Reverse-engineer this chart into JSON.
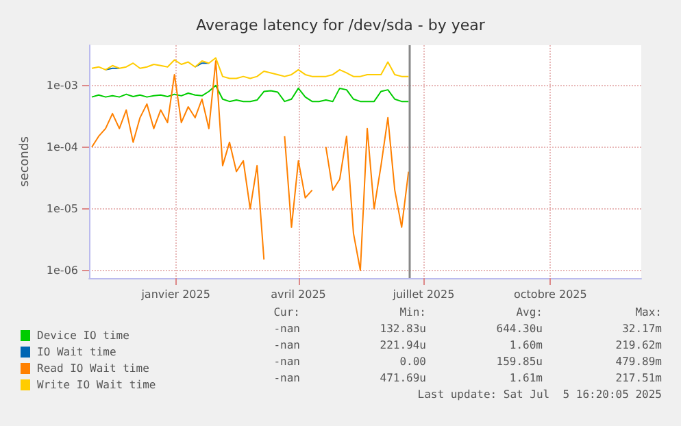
{
  "chart_data": {
    "type": "line",
    "title": "Average latency for /dev/sda - by year",
    "ylabel": "seconds",
    "x": [
      "2024-11-16",
      "2024-11-21",
      "2024-11-26",
      "2024-12-01",
      "2024-12-06",
      "2024-12-11",
      "2024-12-16",
      "2024-12-21",
      "2024-12-26",
      "2024-12-31",
      "2025-01-05",
      "2025-01-10",
      "2025-01-15",
      "2025-01-20",
      "2025-01-25",
      "2025-01-30",
      "2025-02-04",
      "2025-02-09",
      "2025-02-14",
      "2025-02-19",
      "2025-02-24",
      "2025-03-01",
      "2025-03-06",
      "2025-03-11",
      "2025-03-16",
      "2025-03-21",
      "2025-03-26",
      "2025-03-31",
      "2025-04-05",
      "2025-04-10",
      "2025-04-15",
      "2025-04-20",
      "2025-04-25",
      "2025-04-30",
      "2025-05-05",
      "2025-05-10",
      "2025-05-15",
      "2025-05-20",
      "2025-05-25",
      "2025-05-30",
      "2025-06-04",
      "2025-06-09",
      "2025-06-14",
      "2025-06-19",
      "2025-06-24",
      "2025-06-29",
      "2025-07-04"
    ],
    "series": [
      {
        "name": "Device IO time",
        "color": "#00cc00",
        "values": [
          0.00065,
          0.0007,
          0.00065,
          0.00068,
          0.00065,
          0.00072,
          0.00066,
          0.0007,
          0.00065,
          0.00068,
          0.0007,
          0.00066,
          0.00072,
          0.00068,
          0.00075,
          0.0007,
          0.00068,
          0.0008,
          0.001,
          0.0006,
          0.00055,
          0.00058,
          0.00055,
          0.00055,
          0.00058,
          0.0008,
          0.00082,
          0.00078,
          0.00055,
          0.0006,
          0.0009,
          0.00065,
          0.00055,
          0.00055,
          0.00058,
          0.00055,
          0.0009,
          0.00085,
          0.0006,
          0.00055,
          0.00055,
          0.00055,
          0.0008,
          0.00085,
          0.0006,
          0.00055,
          0.00055
        ]
      },
      {
        "name": "IO Wait time",
        "color": "#0066b3",
        "values": [
          null,
          null,
          0.0018,
          0.0019,
          0.0019,
          null,
          null,
          null,
          null,
          null,
          null,
          null,
          null,
          null,
          null,
          0.002,
          0.0023,
          0.0023,
          null,
          null,
          null,
          null,
          null,
          null,
          null,
          null,
          null,
          null,
          null,
          null,
          null,
          null,
          null,
          null,
          null,
          null,
          null,
          null,
          null,
          null,
          null,
          null,
          null,
          null,
          null,
          null,
          null
        ]
      },
      {
        "name": "Read IO Wait time",
        "color": "#ff8000",
        "values": [
          0.0001,
          0.00015,
          0.0002,
          0.00035,
          0.0002,
          0.0004,
          0.00012,
          0.0003,
          0.0005,
          0.0002,
          0.0004,
          0.00025,
          0.0015,
          0.00025,
          0.00045,
          0.0003,
          0.0006,
          0.0002,
          0.0025,
          5e-05,
          0.00012,
          4e-05,
          6e-05,
          1e-05,
          5e-05,
          1.5e-06,
          null,
          null,
          0.00015,
          5e-06,
          6e-05,
          1.5e-05,
          2e-05,
          null,
          0.0001,
          2e-05,
          3e-05,
          0.00015,
          4e-06,
          1e-06,
          0.0002,
          1e-05,
          5e-05,
          0.0003,
          2e-05,
          5e-06,
          4e-05
        ]
      },
      {
        "name": "Write IO Wait time",
        "color": "#ffcc00",
        "values": [
          0.0019,
          0.002,
          0.0018,
          0.0021,
          0.0019,
          0.002,
          0.0023,
          0.0019,
          0.002,
          0.0022,
          0.0021,
          0.002,
          0.0026,
          0.0022,
          0.0024,
          0.002,
          0.0025,
          0.0023,
          0.0028,
          0.0014,
          0.0013,
          0.0013,
          0.0014,
          0.0013,
          0.0014,
          0.0017,
          0.0016,
          0.0015,
          0.0014,
          0.0015,
          0.0018,
          0.0015,
          0.0014,
          0.0014,
          0.0014,
          0.0015,
          0.0018,
          0.0016,
          0.0014,
          0.0014,
          0.0015,
          0.0015,
          0.0015,
          0.0024,
          0.0015,
          0.0014,
          0.0014
        ]
      }
    ],
    "xlim": [
      "2024-11-14",
      "2025-12-20"
    ],
    "xticks": [
      {
        "value": "2025-01-16",
        "label": "janvier 2025"
      },
      {
        "value": "2025-04-15",
        "label": "avril 2025"
      },
      {
        "value": "2025-07-15",
        "label": "juillet 2025"
      },
      {
        "value": "2025-10-15",
        "label": "octobre 2025"
      }
    ],
    "ylim": [
      7.5e-07,
      0.0045
    ],
    "yticks": [
      {
        "value": 1e-06,
        "label": "1e-06"
      },
      {
        "value": 1e-05,
        "label": "1e-05"
      },
      {
        "value": 0.0001,
        "label": "1e-04"
      },
      {
        "value": 0.001,
        "label": "1e-03"
      }
    ],
    "log": "y",
    "grid": true,
    "legend": "bottom left",
    "marker": "none",
    "line_style": "solid",
    "ref_lines": [
      {
        "axis": "x",
        "value": "2025-07-05",
        "label": null,
        "color": "#888888"
      }
    ],
    "annotations": [
      "Cur:  Min:  Avg:  Max:",
      "-nan  132.83u  644.30u  32.17m",
      "-nan  221.94u  1.60m  219.62m",
      "-nan  0.00  159.85u  479.89m",
      "-nan  471.69u  1.61m  217.51m",
      "Last update: Sat Jul  5 16:20:05 2025"
    ]
  }
}
